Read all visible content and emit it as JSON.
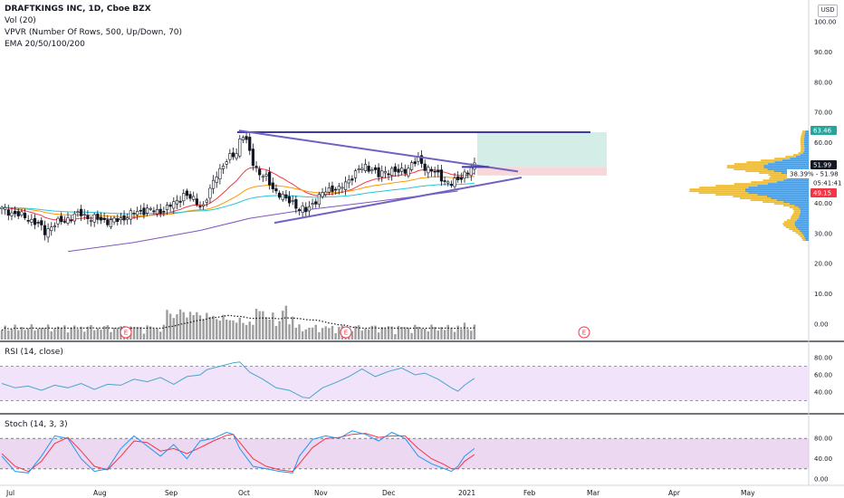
{
  "legend": {
    "symbol": "DRAFTKINGS INC, 1D, Cboe BZX",
    "vol": "Vol (20)",
    "vpvr": "VPVR (Number Of Rows, 500, Up/Down, 70)",
    "ema": "EMA 20/50/100/200"
  },
  "rsi_label": "RSI (14, close)",
  "stoch_label": "Stoch (14, 3, 3)",
  "currency": "USD",
  "colors": {
    "up": "#ffffff",
    "down": "#131722",
    "ema20": "#f23645",
    "ema50": "#ff9800",
    "ema100": "#26c6da",
    "ema200": "#7e57c2",
    "trendline": "#7161c2",
    "resistance": "#3f3aa6",
    "target_zone": "#d4ede6",
    "stop_zone": "#f8d7da",
    "vp_up": "#2196f3",
    "vp_down": "#f5b400",
    "rsi_line": "#4aa7c9",
    "rsi_band": "#f0e3fa",
    "stoch_k": "#2196f3",
    "stoch_d": "#f23645",
    "stoch_band": "#e1bee7"
  },
  "price_axis": {
    "ticks": [
      "100.00",
      "90.00",
      "80.00",
      "70.00",
      "60.00",
      "50.00",
      "40.00",
      "30.00",
      "20.00",
      "10.00",
      "0.00"
    ],
    "badges": [
      {
        "text": "63.46",
        "color": "#26a69a"
      },
      {
        "text": "51.99",
        "color": "#131722"
      },
      {
        "text": "38.39% - 51.98",
        "color": "#ffffff"
      },
      {
        "text": "05:41:41",
        "color": "#ffffff"
      },
      {
        "text": "49.15",
        "color": "#f23645"
      }
    ]
  },
  "rsi_axis": {
    "ticks": [
      "80.00",
      "60.00",
      "40.00"
    ]
  },
  "stoch_axis": {
    "ticks": [
      "80.00",
      "40.00",
      "0.00"
    ]
  },
  "time_axis": {
    "labels": [
      "Jul",
      "Aug",
      "Sep",
      "Oct",
      "Nov",
      "Dec",
      "2021",
      "Feb",
      "Mar",
      "Apr",
      "May"
    ]
  },
  "earnings_marker": "E",
  "chart_data": {
    "type": "candlestick",
    "title": "DRAFTKINGS INC, 1D, Cboe BZX",
    "x_start": "Jun 2020",
    "ylim": [
      0,
      105
    ],
    "rsi_ylim": [
      20,
      80
    ],
    "stoch_ylim": [
      0,
      100
    ],
    "resistance_level": 63.46,
    "last_price": 51.99,
    "stop_level": 49.15,
    "close_path": [
      [
        0,
        38
      ],
      [
        4,
        36.5
      ],
      [
        8,
        35
      ],
      [
        11,
        33
      ],
      [
        13,
        30.5
      ],
      [
        15,
        32.5
      ],
      [
        18,
        34
      ],
      [
        21,
        35.5
      ],
      [
        24,
        36.5
      ],
      [
        27,
        35
      ],
      [
        30,
        34.5
      ],
      [
        33,
        34
      ],
      [
        36,
        34.5
      ],
      [
        38,
        36
      ],
      [
        41,
        37
      ],
      [
        44,
        38
      ],
      [
        47,
        37
      ],
      [
        50,
        38.5
      ],
      [
        53,
        40.5
      ],
      [
        55,
        43
      ],
      [
        58,
        41
      ],
      [
        61,
        39
      ],
      [
        63,
        44
      ],
      [
        65,
        50
      ],
      [
        67,
        52.5
      ],
      [
        69,
        55
      ],
      [
        71,
        57
      ],
      [
        72,
        61
      ],
      [
        73,
        62.5
      ],
      [
        74,
        60
      ],
      [
        76,
        53.5
      ],
      [
        78,
        50
      ],
      [
        80,
        48
      ],
      [
        82,
        45
      ],
      [
        84,
        43
      ],
      [
        86,
        41
      ],
      [
        88,
        40.5
      ],
      [
        90,
        38
      ],
      [
        92,
        37.5
      ],
      [
        94,
        40
      ],
      [
        96,
        42
      ],
      [
        98,
        44
      ],
      [
        100,
        45
      ],
      [
        102,
        44.5
      ],
      [
        104,
        46.5
      ],
      [
        106,
        49
      ],
      [
        108,
        51
      ],
      [
        110,
        52
      ],
      [
        112,
        51.5
      ],
      [
        114,
        49
      ],
      [
        116,
        50.5
      ],
      [
        118,
        51
      ],
      [
        120,
        50
      ],
      [
        122,
        51
      ],
      [
        124,
        53
      ],
      [
        126,
        54
      ],
      [
        128,
        52
      ],
      [
        130,
        51
      ],
      [
        132,
        49
      ],
      [
        134,
        47.5
      ],
      [
        136,
        46.5
      ],
      [
        138,
        47.5
      ],
      [
        140,
        50
      ],
      [
        142,
        51.5
      ],
      [
        143,
        51.99
      ]
    ],
    "ema200_path": [
      [
        20,
        24
      ],
      [
        40,
        27
      ],
      [
        60,
        31
      ],
      [
        75,
        35
      ],
      [
        90,
        37.5
      ],
      [
        105,
        39.5
      ],
      [
        120,
        41.5
      ],
      [
        138,
        44
      ]
    ],
    "rsi_path": [
      [
        0,
        50
      ],
      [
        4,
        45
      ],
      [
        8,
        47
      ],
      [
        12,
        42
      ],
      [
        16,
        48
      ],
      [
        20,
        45
      ],
      [
        24,
        50
      ],
      [
        28,
        43
      ],
      [
        32,
        49
      ],
      [
        36,
        48
      ],
      [
        40,
        55
      ],
      [
        44,
        52
      ],
      [
        48,
        57
      ],
      [
        52,
        49
      ],
      [
        56,
        58
      ],
      [
        60,
        60
      ],
      [
        62,
        66
      ],
      [
        66,
        70
      ],
      [
        70,
        74
      ],
      [
        72,
        75
      ],
      [
        75,
        63
      ],
      [
        79,
        55
      ],
      [
        83,
        45
      ],
      [
        87,
        42
      ],
      [
        91,
        34
      ],
      [
        93,
        33
      ],
      [
        97,
        45
      ],
      [
        101,
        51
      ],
      [
        105,
        58
      ],
      [
        109,
        67
      ],
      [
        113,
        58
      ],
      [
        117,
        64
      ],
      [
        121,
        68
      ],
      [
        125,
        60
      ],
      [
        128,
        62
      ],
      [
        132,
        55
      ],
      [
        136,
        45
      ],
      [
        138,
        41
      ],
      [
        140,
        48
      ],
      [
        143,
        56
      ]
    ],
    "stoch_k": [
      [
        0,
        45
      ],
      [
        4,
        15
      ],
      [
        8,
        12
      ],
      [
        12,
        45
      ],
      [
        16,
        85
      ],
      [
        20,
        80
      ],
      [
        24,
        40
      ],
      [
        28,
        15
      ],
      [
        32,
        20
      ],
      [
        36,
        60
      ],
      [
        40,
        85
      ],
      [
        44,
        65
      ],
      [
        48,
        45
      ],
      [
        52,
        68
      ],
      [
        56,
        40
      ],
      [
        60,
        75
      ],
      [
        64,
        80
      ],
      [
        68,
        92
      ],
      [
        70,
        88
      ],
      [
        72,
        60
      ],
      [
        76,
        25
      ],
      [
        80,
        20
      ],
      [
        84,
        15
      ],
      [
        88,
        12
      ],
      [
        90,
        45
      ],
      [
        94,
        78
      ],
      [
        98,
        85
      ],
      [
        102,
        80
      ],
      [
        106,
        95
      ],
      [
        110,
        88
      ],
      [
        114,
        75
      ],
      [
        118,
        92
      ],
      [
        122,
        80
      ],
      [
        126,
        45
      ],
      [
        130,
        30
      ],
      [
        134,
        20
      ],
      [
        136,
        15
      ],
      [
        138,
        25
      ],
      [
        140,
        45
      ],
      [
        143,
        60
      ]
    ],
    "stoch_d": [
      [
        0,
        50
      ],
      [
        4,
        25
      ],
      [
        8,
        15
      ],
      [
        12,
        35
      ],
      [
        16,
        70
      ],
      [
        20,
        82
      ],
      [
        24,
        55
      ],
      [
        28,
        25
      ],
      [
        32,
        18
      ],
      [
        36,
        45
      ],
      [
        40,
        75
      ],
      [
        44,
        72
      ],
      [
        48,
        55
      ],
      [
        52,
        60
      ],
      [
        56,
        50
      ],
      [
        60,
        62
      ],
      [
        64,
        75
      ],
      [
        68,
        86
      ],
      [
        70,
        88
      ],
      [
        72,
        72
      ],
      [
        76,
        40
      ],
      [
        80,
        25
      ],
      [
        84,
        18
      ],
      [
        88,
        15
      ],
      [
        90,
        30
      ],
      [
        94,
        62
      ],
      [
        98,
        80
      ],
      [
        102,
        82
      ],
      [
        106,
        88
      ],
      [
        110,
        90
      ],
      [
        114,
        82
      ],
      [
        118,
        85
      ],
      [
        122,
        85
      ],
      [
        126,
        60
      ],
      [
        130,
        40
      ],
      [
        134,
        28
      ],
      [
        136,
        20
      ],
      [
        138,
        20
      ],
      [
        140,
        35
      ],
      [
        143,
        48
      ]
    ]
  }
}
